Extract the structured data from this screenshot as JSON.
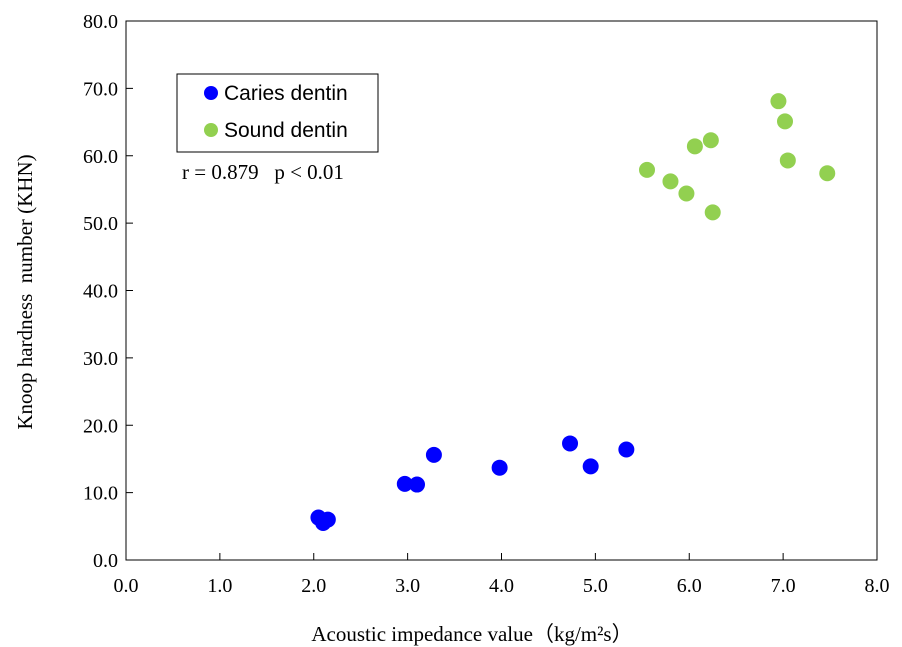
{
  "chart_data": {
    "type": "scatter",
    "xlabel": "Acoustic impedance value（kg/m²s）",
    "ylabel": "Knoop hardness  number (KHN)",
    "xlim": [
      0,
      8
    ],
    "ylim": [
      0,
      80
    ],
    "x_ticks": [
      "0.0",
      "1.0",
      "2.0",
      "3.0",
      "4.0",
      "5.0",
      "6.0",
      "7.0",
      "8.0"
    ],
    "y_ticks": [
      "0.0",
      "10.0",
      "20.0",
      "30.0",
      "40.0",
      "50.0",
      "60.0",
      "70.0",
      "80.0"
    ],
    "grid": false,
    "legend_position": "top-left",
    "annotation": "r = 0.879   p < 0.01",
    "series": [
      {
        "name": "Caries dentin",
        "color": "#0000ff",
        "points": [
          {
            "x": 2.05,
            "y": 6.3
          },
          {
            "x": 2.1,
            "y": 5.5
          },
          {
            "x": 2.15,
            "y": 6.0
          },
          {
            "x": 2.97,
            "y": 11.3
          },
          {
            "x": 3.1,
            "y": 11.2
          },
          {
            "x": 3.28,
            "y": 15.6
          },
          {
            "x": 3.98,
            "y": 13.7
          },
          {
            "x": 4.73,
            "y": 17.3
          },
          {
            "x": 4.95,
            "y": 13.9
          },
          {
            "x": 5.33,
            "y": 16.4
          }
        ]
      },
      {
        "name": "Sound dentin",
        "color": "#92d050",
        "points": [
          {
            "x": 5.55,
            "y": 57.9
          },
          {
            "x": 5.8,
            "y": 56.2
          },
          {
            "x": 5.97,
            "y": 54.4
          },
          {
            "x": 6.06,
            "y": 61.4
          },
          {
            "x": 6.23,
            "y": 62.3
          },
          {
            "x": 6.25,
            "y": 51.6
          },
          {
            "x": 6.95,
            "y": 68.1
          },
          {
            "x": 7.02,
            "y": 65.1
          },
          {
            "x": 7.05,
            "y": 59.3
          },
          {
            "x": 7.47,
            "y": 57.4
          }
        ]
      }
    ]
  }
}
